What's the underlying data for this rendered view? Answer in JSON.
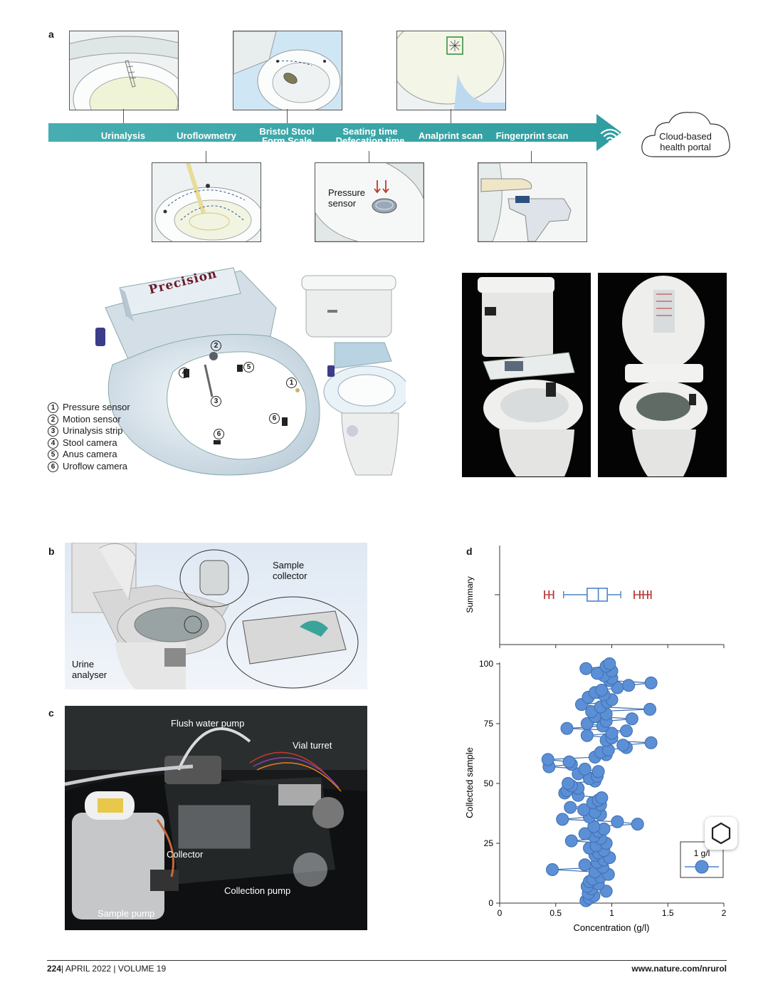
{
  "panels": {
    "a": "a",
    "b": "b",
    "c": "c",
    "d": "d"
  },
  "timeline": {
    "steps": [
      {
        "label": "Urinalysis"
      },
      {
        "label": "Uroflowmetry"
      },
      {
        "label": "Bristol Stool\nForm Scale"
      },
      {
        "label": "Seating time\nDefecation time"
      },
      {
        "label": "Analprint scan"
      },
      {
        "label": "Fingerprint scan"
      }
    ],
    "cloud_label": "Cloud-based\nhealth portal",
    "pressure_sensor_label": "Pressure\nsensor"
  },
  "seat": {
    "brand_label": "Precision",
    "legend": [
      {
        "num": "1",
        "label": "Pressure sensor"
      },
      {
        "num": "2",
        "label": "Motion sensor"
      },
      {
        "num": "3",
        "label": "Urinalysis strip"
      },
      {
        "num": "4",
        "label": "Stool camera"
      },
      {
        "num": "5",
        "label": "Anus camera"
      },
      {
        "num": "6",
        "label": "Uroflow camera"
      }
    ],
    "markers": [
      "1",
      "2",
      "3",
      "4",
      "5",
      "6"
    ]
  },
  "panel_b": {
    "sample_collector": "Sample\ncollector",
    "urine_analyser": "Urine\nanalyser"
  },
  "panel_c": {
    "flush_water_pump": "Flush water pump",
    "vial_turret": "Vial turret",
    "collector": "Collector",
    "collection_pump": "Collection pump",
    "sample_pump": "Sample pump"
  },
  "chart_data": [
    {
      "type": "box",
      "ylabel": "Summary",
      "xlim": [
        0,
        2
      ],
      "box": {
        "whisker_low": 0.57,
        "q1": 0.78,
        "median": 0.88,
        "q3": 0.96,
        "whisker_high": 1.08
      },
      "outliers_low": [
        0.4,
        0.44,
        0.48
      ],
      "outliers_high": [
        1.2,
        1.25,
        1.28,
        1.32,
        1.35
      ]
    },
    {
      "type": "scatter",
      "xlabel": "Concentration (g/l)",
      "ylabel": "Collected sample",
      "xlim": [
        0,
        2
      ],
      "ylim": [
        0,
        100
      ],
      "xticks": [
        "0",
        "0.5",
        "1",
        "1.5",
        "2"
      ],
      "yticks": [
        "0",
        "25",
        "50",
        "75",
        "100"
      ],
      "legend": {
        "label": "1 g/l",
        "placement": "bottom-right"
      },
      "series": [
        {
          "name": "1 g/l",
          "color": "#5b8fd6",
          "points": [
            [
              0.77,
              1
            ],
            [
              0.8,
              2
            ],
            [
              0.84,
              3
            ],
            [
              0.79,
              4
            ],
            [
              0.95,
              5
            ],
            [
              0.82,
              6
            ],
            [
              0.78,
              7
            ],
            [
              0.88,
              8
            ],
            [
              0.8,
              9
            ],
            [
              0.83,
              10
            ],
            [
              0.9,
              11
            ],
            [
              0.97,
              12
            ],
            [
              0.85,
              13
            ],
            [
              0.47,
              14
            ],
            [
              0.92,
              15
            ],
            [
              0.76,
              16
            ],
            [
              0.87,
              17
            ],
            [
              0.93,
              18
            ],
            [
              0.98,
              19
            ],
            [
              0.85,
              20
            ],
            [
              0.88,
              21
            ],
            [
              0.93,
              22
            ],
            [
              0.8,
              23
            ],
            [
              0.86,
              24
            ],
            [
              0.95,
              25
            ],
            [
              0.64,
              26
            ],
            [
              0.9,
              27
            ],
            [
              0.84,
              28
            ],
            [
              0.76,
              29
            ],
            [
              0.88,
              30
            ],
            [
              0.93,
              31
            ],
            [
              0.84,
              32
            ],
            [
              1.23,
              33
            ],
            [
              1.05,
              34
            ],
            [
              0.56,
              35
            ],
            [
              0.8,
              36
            ],
            [
              0.9,
              37
            ],
            [
              0.85,
              38
            ],
            [
              0.75,
              39
            ],
            [
              0.63,
              40
            ],
            [
              0.9,
              41
            ],
            [
              0.83,
              42
            ],
            [
              0.88,
              43
            ],
            [
              0.91,
              44
            ],
            [
              0.7,
              45
            ],
            [
              0.58,
              46
            ],
            [
              0.6,
              47
            ],
            [
              0.7,
              48
            ],
            [
              0.64,
              49
            ],
            [
              0.61,
              50
            ],
            [
              0.85,
              51
            ],
            [
              0.8,
              52
            ],
            [
              0.87,
              53
            ],
            [
              0.7,
              54
            ],
            [
              0.88,
              55
            ],
            [
              0.76,
              56
            ],
            [
              0.44,
              57
            ],
            [
              0.64,
              58
            ],
            [
              0.62,
              59
            ],
            [
              0.43,
              60
            ],
            [
              0.85,
              61
            ],
            [
              0.95,
              62
            ],
            [
              0.9,
              63
            ],
            [
              0.97,
              64
            ],
            [
              1.13,
              65
            ],
            [
              1.1,
              66
            ],
            [
              1.35,
              67
            ],
            [
              0.95,
              68
            ],
            [
              1.0,
              69
            ],
            [
              0.78,
              70
            ],
            [
              1.0,
              71
            ],
            [
              1.13,
              72
            ],
            [
              0.6,
              73
            ],
            [
              0.92,
              74
            ],
            [
              0.78,
              75
            ],
            [
              0.95,
              76
            ],
            [
              1.18,
              77
            ],
            [
              0.85,
              78
            ],
            [
              0.95,
              79
            ],
            [
              0.82,
              80
            ],
            [
              1.34,
              81
            ],
            [
              0.9,
              82
            ],
            [
              0.73,
              83
            ],
            [
              0.96,
              84
            ],
            [
              1.0,
              85
            ],
            [
              0.79,
              86
            ],
            [
              0.93,
              87
            ],
            [
              0.85,
              88
            ],
            [
              0.91,
              89
            ],
            [
              1.05,
              90
            ],
            [
              1.15,
              91
            ],
            [
              1.35,
              92
            ],
            [
              0.98,
              93
            ],
            [
              1.0,
              94
            ],
            [
              0.93,
              95
            ],
            [
              0.87,
              96
            ],
            [
              1.0,
              97
            ],
            [
              0.77,
              98
            ],
            [
              0.95,
              99
            ],
            [
              0.98,
              100
            ]
          ]
        }
      ]
    }
  ],
  "footer": {
    "page": "224",
    "issue": "| APRIL 2022 | VOLUME 19",
    "url": "www.nature.com/nrurol"
  }
}
